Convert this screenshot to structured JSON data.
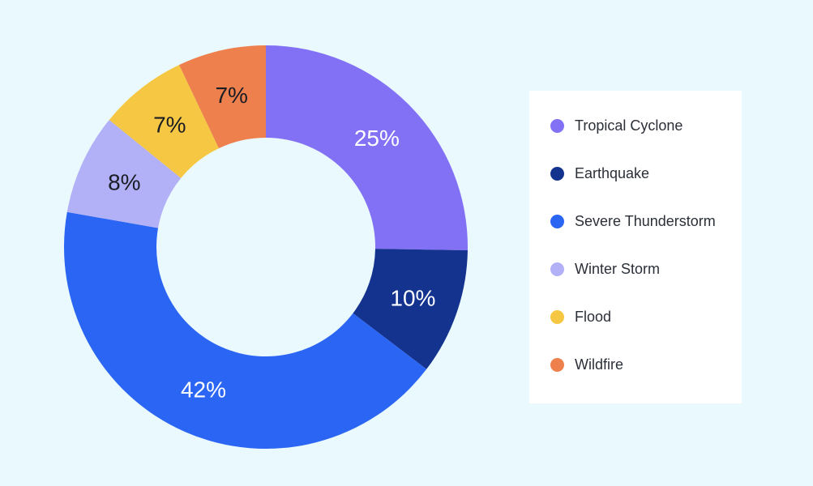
{
  "chart_data": {
    "type": "pie",
    "variant": "donut",
    "legend": "right",
    "slices": [
      {
        "name": "Tropical Cyclone",
        "value": 25,
        "label": "25%",
        "color": "#8371f5",
        "label_color": "#ffffff"
      },
      {
        "name": "Earthquake",
        "value": 10,
        "label": "10%",
        "color": "#14338e",
        "label_color": "#ffffff"
      },
      {
        "name": "Severe Thunderstorm",
        "value": 42,
        "label": "42%",
        "color": "#2b65f3",
        "label_color": "#ffffff"
      },
      {
        "name": "Winter Storm",
        "value": 8,
        "label": "8%",
        "color": "#b2b0f6",
        "label_color": "#1a1d24"
      },
      {
        "name": "Flood",
        "value": 7,
        "label": "7%",
        "color": "#f6c743",
        "label_color": "#1a1d24"
      },
      {
        "name": "Wildfire",
        "value": 7,
        "label": "7%",
        "color": "#ee804d",
        "label_color": "#1a1d24"
      }
    ]
  },
  "colors": {
    "background": "#e9f9fd",
    "legend_background": "#ffffff"
  }
}
